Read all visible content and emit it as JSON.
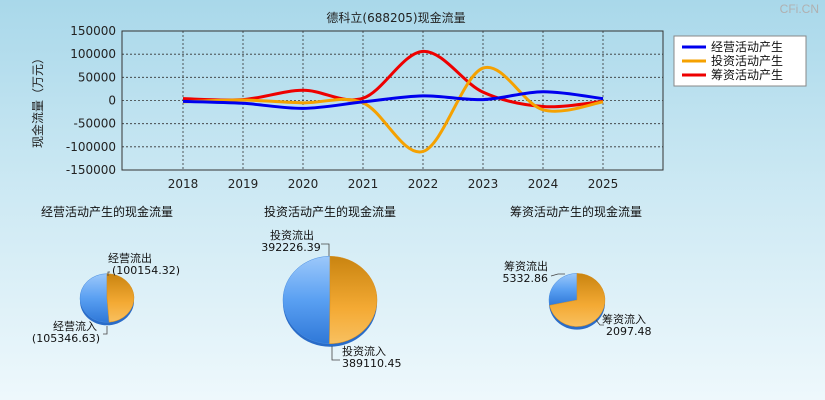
{
  "watermark": "CFi.CN",
  "chart_data": [
    {
      "type": "line",
      "title": "德科立(688205)现金流量",
      "ylabel": "现金流量（万元）",
      "xlabel": "",
      "categories": [
        "2018",
        "2019",
        "2020",
        "2021",
        "2022",
        "2023",
        "2024",
        "2025"
      ],
      "ylim": [
        -150000,
        150000
      ],
      "yticks": [
        150000,
        100000,
        50000,
        0,
        -50000,
        -100000,
        -150000
      ],
      "ytick_labels": [
        "150000",
        "100000",
        "50000",
        "0",
        "-50000",
        "-100000",
        "-150000"
      ],
      "grid": true,
      "legend_position": "top-right",
      "series": [
        {
          "name": "经营活动产生",
          "color": "#0000ee",
          "values": [
            -2000,
            -6000,
            -17000,
            -3000,
            10000,
            2000,
            19000,
            4000
          ]
        },
        {
          "name": "投资活动产生",
          "color": "#f5a100",
          "values": [
            -3000,
            1000,
            -5000,
            -5000,
            -110000,
            70000,
            -20000,
            -3000
          ]
        },
        {
          "name": "筹资活动产生",
          "color": "#ee0000",
          "values": [
            4000,
            2000,
            22000,
            5000,
            106000,
            18000,
            -13000,
            -2000
          ]
        }
      ]
    },
    {
      "type": "pie",
      "title": "经营活动产生的现金流量",
      "slices": [
        {
          "label": "经营流出",
          "value": 100154.32,
          "value_label": "(100154.32)",
          "color": "#f2a323"
        },
        {
          "label": "经营流入",
          "value": 105346.63,
          "value_label": "(105346.63)",
          "color": "#5aa0f2"
        }
      ]
    },
    {
      "type": "pie",
      "title": "投资活动产生的现金流量",
      "slices": [
        {
          "label": "投资流出",
          "value": 392226.39,
          "value_label": "392226.39",
          "color": "#f2a323"
        },
        {
          "label": "投资流入",
          "value": 389110.45,
          "value_label": "389110.45",
          "color": "#5aa0f2"
        }
      ]
    },
    {
      "type": "pie",
      "title": "筹资活动产生的现金流量",
      "slices": [
        {
          "label": "筹资流出",
          "value": 5332.86,
          "value_label": "5332.86",
          "color": "#f2a323"
        },
        {
          "label": "筹资流入",
          "value": 2097.48,
          "value_label": "2097.48",
          "color": "#5aa0f2"
        }
      ]
    }
  ]
}
